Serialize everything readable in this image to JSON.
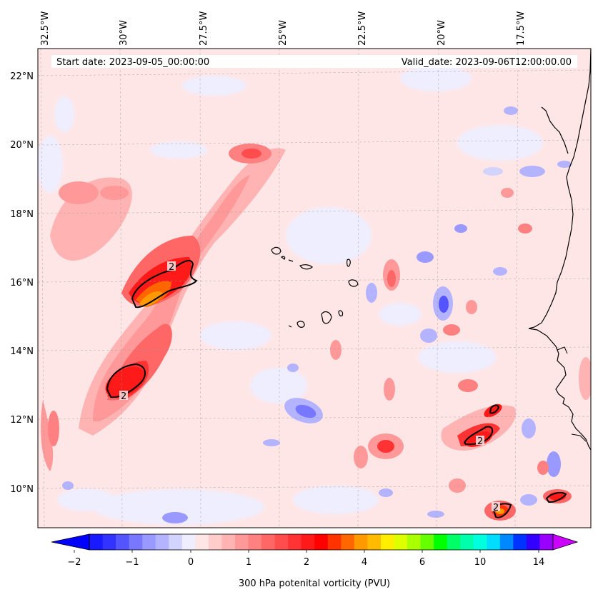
{
  "info_bar": {
    "start_date": "Start date: 2023-09-05_00:00:00",
    "valid_date": "Valid_date: 2023-09-06T12:00:00.00"
  },
  "map": {
    "lon_labels": [
      "32.5°W",
      "30°W",
      "27.5°W",
      "25°W",
      "22.5°W",
      "20°W",
      "17.5°W"
    ],
    "lat_labels": [
      "22°N",
      "20°N",
      "18°N",
      "16°N",
      "14°N",
      "12°N",
      "10°N"
    ],
    "contour_label": "2",
    "contour_level_pvu": 2
  },
  "colorbar": {
    "label": "300 hPa potenital vorticity (PVU)",
    "tick_labels": [
      "−2",
      "−1",
      "0",
      "1",
      "2",
      "4",
      "6",
      "10",
      "14"
    ],
    "colors": [
      "#1a1aff",
      "#3333ff",
      "#5555ff",
      "#7777ff",
      "#9999ff",
      "#b3b3ff",
      "#d3d3ff",
      "#eeeeff",
      "#ffe6e6",
      "#ffcccc",
      "#ffb3b3",
      "#ff9999",
      "#ff8080",
      "#ff6666",
      "#ff4d4d",
      "#ff3333",
      "#ff1a1a",
      "#ff0000",
      "#ff3300",
      "#ff6600",
      "#ff9900",
      "#ffbb00",
      "#ffee00",
      "#ddff00",
      "#aaff00",
      "#66ff00",
      "#00ff00",
      "#00ff66",
      "#00ffaa",
      "#00ffdd",
      "#00ddff",
      "#0088ff",
      "#0033ff",
      "#3300ff",
      "#9900ff"
    ],
    "extend_low_color": "#0000ff",
    "extend_high_color": "#cc00ff"
  }
}
